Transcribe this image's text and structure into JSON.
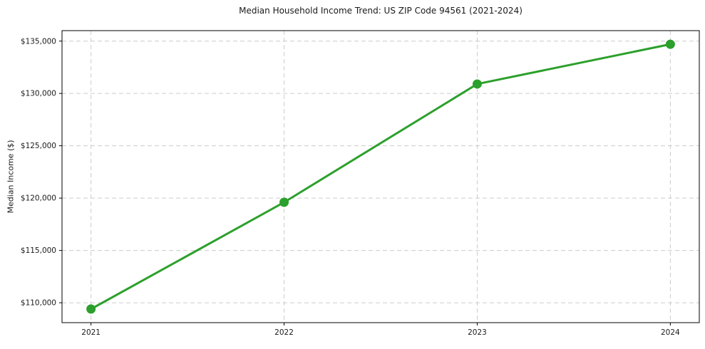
{
  "chart_data": {
    "type": "line",
    "title": "Median Household Income Trend: US ZIP Code 94561 (2021-2024)",
    "xlabel": "",
    "ylabel": "Median Income ($)",
    "x": [
      2021,
      2022,
      2023,
      2024
    ],
    "x_tick_labels": [
      "2021",
      "2022",
      "2023",
      "2024"
    ],
    "series": [
      {
        "name": "Median Household Income",
        "values": [
          109400,
          119600,
          130900,
          134700
        ],
        "color": "#2ca02c",
        "marker": "circle"
      }
    ],
    "y_ticks": [
      110000,
      115000,
      120000,
      125000,
      130000,
      135000
    ],
    "y_tick_labels": [
      "$110,000",
      "$115,000",
      "$120,000",
      "$125,000",
      "$130,000",
      "$135,000"
    ],
    "xlim": [
      2020.85,
      2024.15
    ],
    "ylim": [
      108100,
      136000
    ],
    "grid": true,
    "grid_style": "dashed",
    "legend_position": "none",
    "colors": {
      "line": "#2ca02c",
      "grid": "#cccccc",
      "axis": "#000000",
      "text": "#1a1a1a",
      "background": "#ffffff"
    }
  }
}
